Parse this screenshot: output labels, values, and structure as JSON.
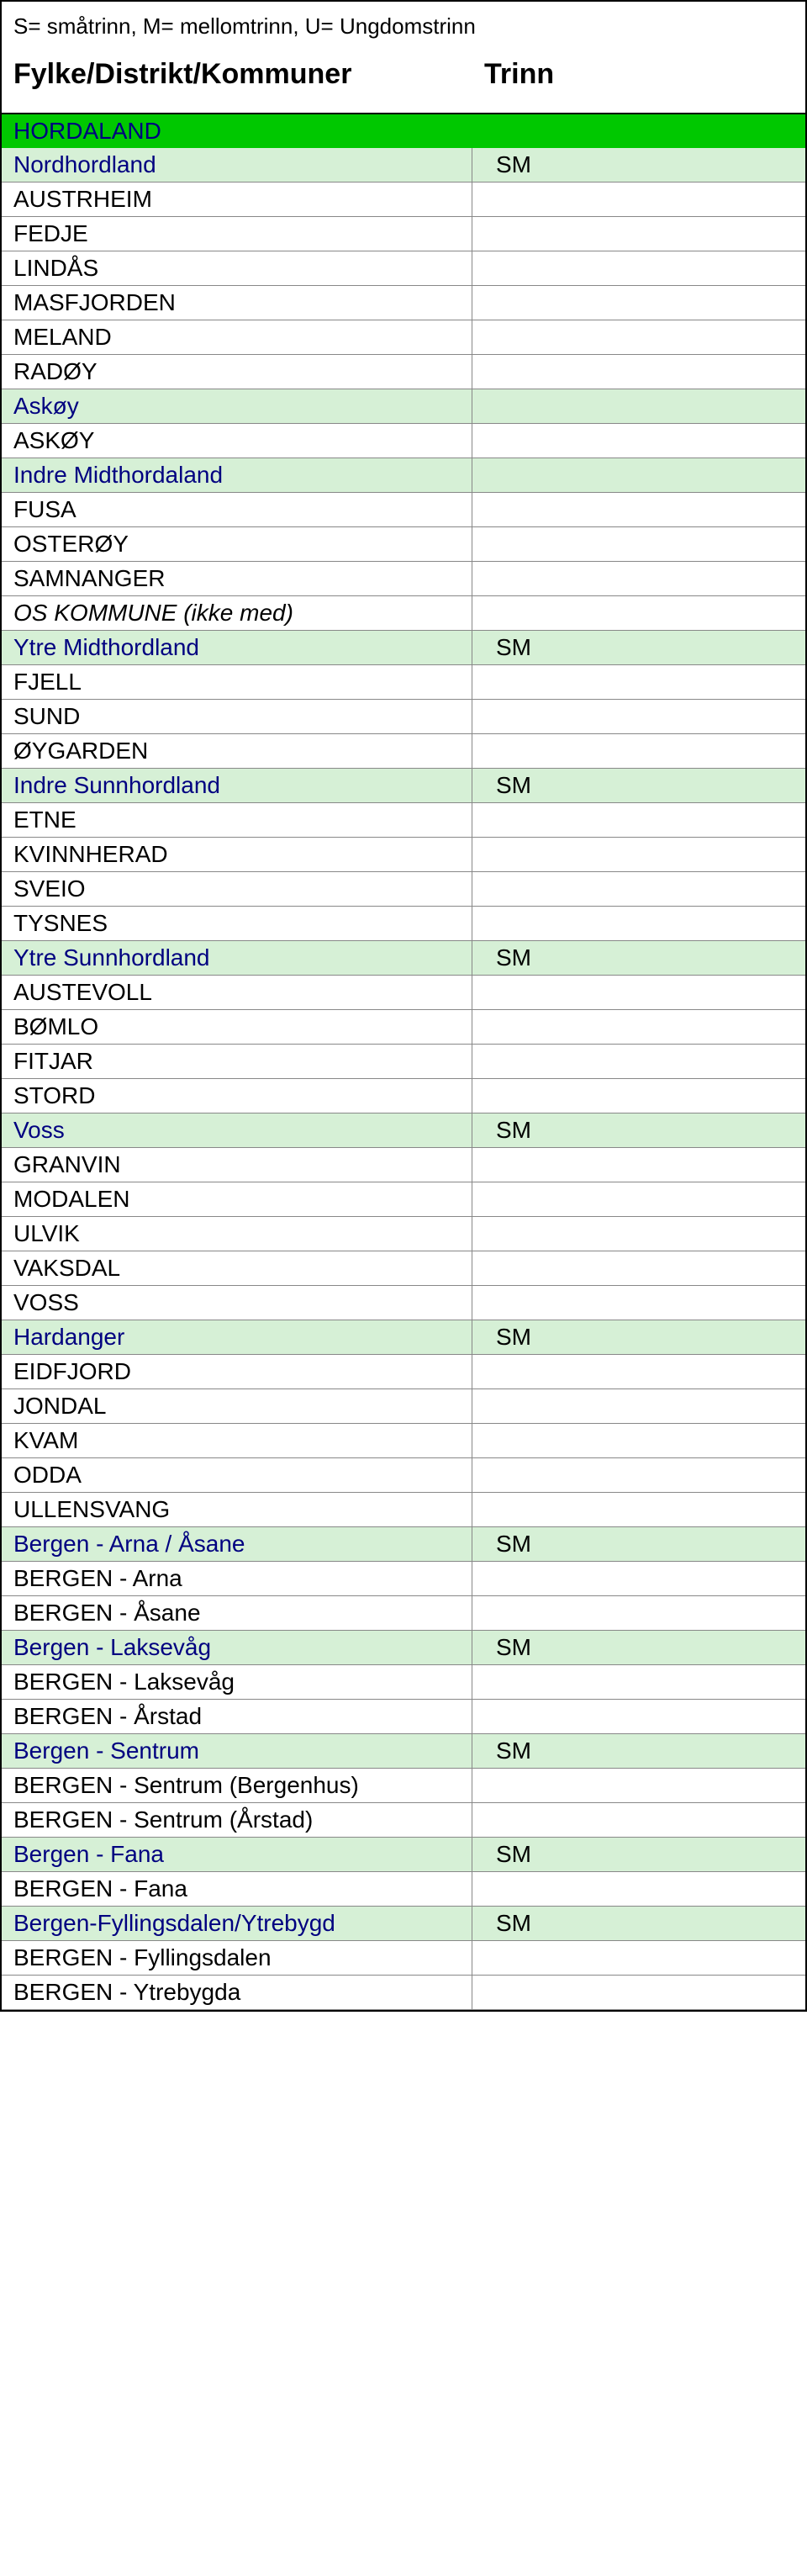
{
  "legend": "S= småtrinn, M= mellomtrinn, U= Ungdomstrinn",
  "headers": {
    "left": "Fylke/Distrikt/Kommuner",
    "right": "Trinn"
  },
  "colors": {
    "county_bg": "#00c800",
    "district_bg": "#d6f0d6",
    "municipality_bg": "#ffffff",
    "county_text": "#000080",
    "district_text": "#000080",
    "border": "#888888"
  },
  "rows": [
    {
      "type": "county",
      "name": "HORDALAND",
      "trinn": ""
    },
    {
      "type": "district",
      "name": "Nordhordland",
      "trinn": "SM"
    },
    {
      "type": "municipality",
      "name": "AUSTRHEIM",
      "trinn": ""
    },
    {
      "type": "municipality",
      "name": "FEDJE",
      "trinn": ""
    },
    {
      "type": "municipality",
      "name": "LINDÅS",
      "trinn": ""
    },
    {
      "type": "municipality",
      "name": "MASFJORDEN",
      "trinn": ""
    },
    {
      "type": "municipality",
      "name": "MELAND",
      "trinn": ""
    },
    {
      "type": "municipality",
      "name": "RADØY",
      "trinn": ""
    },
    {
      "type": "district",
      "name": "Askøy",
      "trinn": ""
    },
    {
      "type": "municipality",
      "name": "ASKØY",
      "trinn": ""
    },
    {
      "type": "district",
      "name": "Indre Midthordaland",
      "trinn": ""
    },
    {
      "type": "municipality",
      "name": "FUSA",
      "trinn": ""
    },
    {
      "type": "municipality",
      "name": "OSTERØY",
      "trinn": ""
    },
    {
      "type": "municipality",
      "name": "SAMNANGER",
      "trinn": ""
    },
    {
      "type": "municipality",
      "name": "OS KOMMUNE (ikke med)",
      "trinn": "",
      "italic": true
    },
    {
      "type": "district",
      "name": "Ytre Midthordland",
      "trinn": "SM"
    },
    {
      "type": "municipality",
      "name": "FJELL",
      "trinn": ""
    },
    {
      "type": "municipality",
      "name": "SUND",
      "trinn": ""
    },
    {
      "type": "municipality",
      "name": "ØYGARDEN",
      "trinn": ""
    },
    {
      "type": "district",
      "name": "Indre Sunnhordland",
      "trinn": "SM"
    },
    {
      "type": "municipality",
      "name": "ETNE",
      "trinn": ""
    },
    {
      "type": "municipality",
      "name": "KVINNHERAD",
      "trinn": ""
    },
    {
      "type": "municipality",
      "name": "SVEIO",
      "trinn": ""
    },
    {
      "type": "municipality",
      "name": "TYSNES",
      "trinn": ""
    },
    {
      "type": "district",
      "name": "Ytre Sunnhordland",
      "trinn": "SM"
    },
    {
      "type": "municipality",
      "name": "AUSTEVOLL",
      "trinn": ""
    },
    {
      "type": "municipality",
      "name": "BØMLO",
      "trinn": ""
    },
    {
      "type": "municipality",
      "name": "FITJAR",
      "trinn": ""
    },
    {
      "type": "municipality",
      "name": "STORD",
      "trinn": ""
    },
    {
      "type": "district",
      "name": "Voss",
      "trinn": "SM"
    },
    {
      "type": "municipality",
      "name": "GRANVIN",
      "trinn": ""
    },
    {
      "type": "municipality",
      "name": "MODALEN",
      "trinn": ""
    },
    {
      "type": "municipality",
      "name": "ULVIK",
      "trinn": ""
    },
    {
      "type": "municipality",
      "name": "VAKSDAL",
      "trinn": ""
    },
    {
      "type": "municipality",
      "name": "VOSS",
      "trinn": ""
    },
    {
      "type": "district",
      "name": "Hardanger",
      "trinn": "SM"
    },
    {
      "type": "municipality",
      "name": "EIDFJORD",
      "trinn": ""
    },
    {
      "type": "municipality",
      "name": "JONDAL",
      "trinn": ""
    },
    {
      "type": "municipality",
      "name": "KVAM",
      "trinn": ""
    },
    {
      "type": "municipality",
      "name": "ODDA",
      "trinn": ""
    },
    {
      "type": "municipality",
      "name": "ULLENSVANG",
      "trinn": ""
    },
    {
      "type": "district",
      "name": "Bergen - Arna / Åsane",
      "trinn": "SM"
    },
    {
      "type": "municipality",
      "name": "BERGEN - Arna",
      "trinn": ""
    },
    {
      "type": "municipality",
      "name": "BERGEN - Åsane",
      "trinn": ""
    },
    {
      "type": "district",
      "name": "Bergen - Laksevåg",
      "trinn": "SM"
    },
    {
      "type": "municipality",
      "name": "BERGEN - Laksevåg",
      "trinn": ""
    },
    {
      "type": "municipality",
      "name": "BERGEN - Årstad",
      "trinn": ""
    },
    {
      "type": "district",
      "name": "Bergen - Sentrum",
      "trinn": "SM"
    },
    {
      "type": "municipality",
      "name": "BERGEN - Sentrum (Bergenhus)",
      "trinn": ""
    },
    {
      "type": "municipality",
      "name": "BERGEN - Sentrum (Årstad)",
      "trinn": ""
    },
    {
      "type": "district",
      "name": "Bergen - Fana",
      "trinn": "SM"
    },
    {
      "type": "municipality",
      "name": "BERGEN - Fana",
      "trinn": ""
    },
    {
      "type": "district",
      "name": "Bergen-Fyllingsdalen/Ytrebygd",
      "trinn": "SM"
    },
    {
      "type": "municipality",
      "name": "BERGEN - Fyllingsdalen",
      "trinn": ""
    },
    {
      "type": "municipality",
      "name": "BERGEN - Ytrebygda",
      "trinn": ""
    }
  ]
}
